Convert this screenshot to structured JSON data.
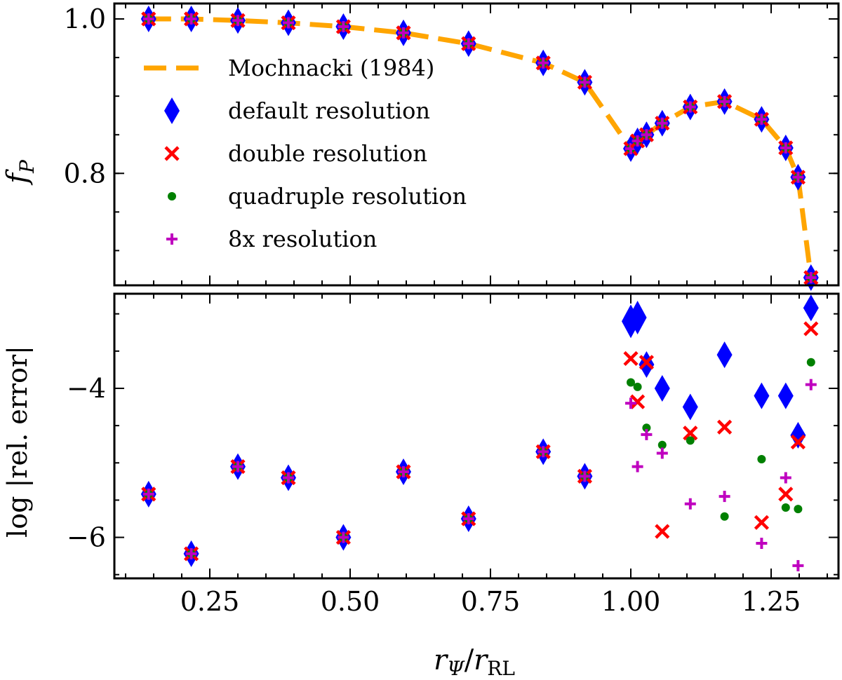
{
  "chart_data": [
    {
      "type": "scatter",
      "panel": "top",
      "ylabel": "f_P",
      "ylabel_main": "f",
      "ylabel_sub": "P",
      "xlim": [
        0.08,
        1.37
      ],
      "ylim": [
        0.655,
        1.02
      ],
      "yticks": [
        0.8,
        1.0
      ],
      "ytick_labels": [
        "0.8",
        "1.0"
      ],
      "legend_position": "upper-left-center",
      "legend": [
        {
          "key": "mochnacki",
          "label": "Mochnacki (1984)",
          "style": "dashed-line",
          "color": "#ffa500"
        },
        {
          "key": "default",
          "label": "default resolution",
          "style": "diamond",
          "color": "#0000ff"
        },
        {
          "key": "double",
          "label": "double resolution",
          "style": "x",
          "color": "#ff0000"
        },
        {
          "key": "quadruple",
          "label": "quadruple resolution",
          "style": "dot",
          "color": "#008000"
        },
        {
          "key": "eight",
          "label": "8x resolution",
          "style": "plus",
          "color": "#bf00bf"
        }
      ],
      "x": [
        0.141,
        0.217,
        0.3,
        0.39,
        0.488,
        0.595,
        0.711,
        0.844,
        0.918,
        1.0,
        1.012,
        1.028,
        1.056,
        1.106,
        1.167,
        1.233,
        1.276,
        1.298,
        1.321
      ],
      "series": [
        {
          "name": "Mochnacki (1984)",
          "values": [
            1.0,
            1.0,
            0.998,
            0.995,
            0.99,
            0.982,
            0.968,
            0.943,
            0.918,
            0.832,
            0.842,
            0.85,
            0.865,
            0.886,
            0.893,
            0.87,
            0.833,
            0.795,
            0.665
          ]
        },
        {
          "name": "default resolution",
          "values": [
            1.0,
            1.0,
            0.998,
            0.995,
            0.99,
            0.982,
            0.968,
            0.943,
            0.918,
            0.832,
            0.842,
            0.85,
            0.865,
            0.886,
            0.893,
            0.87,
            0.833,
            0.795,
            0.665
          ]
        },
        {
          "name": "double resolution",
          "values": [
            1.0,
            1.0,
            0.998,
            0.995,
            0.99,
            0.982,
            0.968,
            0.943,
            0.918,
            0.832,
            0.842,
            0.85,
            0.865,
            0.886,
            0.893,
            0.87,
            0.833,
            0.795,
            0.665
          ]
        },
        {
          "name": "quadruple resolution",
          "values": [
            1.0,
            1.0,
            0.998,
            0.995,
            0.99,
            0.982,
            0.968,
            0.943,
            0.918,
            0.832,
            0.842,
            0.85,
            0.865,
            0.886,
            0.893,
            0.87,
            0.833,
            0.795,
            0.665
          ]
        },
        {
          "name": "8x resolution",
          "values": [
            1.0,
            1.0,
            0.998,
            0.995,
            0.99,
            0.982,
            0.968,
            0.943,
            0.918,
            0.832,
            0.842,
            0.85,
            0.865,
            0.886,
            0.893,
            0.87,
            0.833,
            0.795,
            0.665
          ]
        }
      ]
    },
    {
      "type": "scatter",
      "panel": "bottom",
      "ylabel": "log |rel. error|",
      "xlabel": "r_Ψ / r_RL",
      "xlabel_r1": "r",
      "xlabel_sub1": "Ψ",
      "xlabel_slash": "/",
      "xlabel_r2": "r",
      "xlabel_sub2": "RL",
      "xlim": [
        0.08,
        1.37
      ],
      "ylim": [
        -6.55,
        -2.73
      ],
      "yticks": [
        -6,
        -4
      ],
      "ytick_labels": [
        "−6",
        "−4"
      ],
      "xticks": [
        0.25,
        0.5,
        0.75,
        1.0,
        1.25
      ],
      "xtick_labels": [
        "0.25",
        "0.50",
        "0.75",
        "1.00",
        "1.25"
      ],
      "series": [
        {
          "name": "default resolution",
          "points": [
            [
              0.141,
              -5.42
            ],
            [
              0.217,
              -6.22
            ],
            [
              0.3,
              -5.05
            ],
            [
              0.39,
              -5.2
            ],
            [
              0.488,
              -6.0
            ],
            [
              0.595,
              -5.12
            ],
            [
              0.711,
              -5.75
            ],
            [
              0.844,
              -4.85
            ],
            [
              0.918,
              -5.18
            ],
            [
              1.0,
              -3.1
            ],
            [
              1.012,
              -3.05
            ],
            [
              1.028,
              -3.68
            ],
            [
              1.056,
              -4.0
            ],
            [
              1.106,
              -4.25
            ],
            [
              1.167,
              -3.55
            ],
            [
              1.233,
              -4.1
            ],
            [
              1.276,
              -4.1
            ],
            [
              1.298,
              -4.63
            ],
            [
              1.321,
              -2.92
            ]
          ]
        },
        {
          "name": "double resolution",
          "points": [
            [
              0.141,
              -5.42
            ],
            [
              0.217,
              -6.22
            ],
            [
              0.3,
              -5.05
            ],
            [
              0.39,
              -5.2
            ],
            [
              0.488,
              -6.0
            ],
            [
              0.595,
              -5.12
            ],
            [
              0.711,
              -5.75
            ],
            [
              0.844,
              -4.85
            ],
            [
              0.918,
              -5.18
            ],
            [
              1.0,
              -3.6
            ],
            [
              1.012,
              -4.18
            ],
            [
              1.028,
              -3.65
            ],
            [
              1.056,
              -5.92
            ],
            [
              1.106,
              -4.6
            ],
            [
              1.167,
              -4.52
            ],
            [
              1.233,
              -5.8
            ],
            [
              1.276,
              -5.42
            ],
            [
              1.298,
              -4.72
            ],
            [
              1.321,
              -3.2
            ]
          ]
        },
        {
          "name": "quadruple resolution",
          "points": [
            [
              0.141,
              -5.42
            ],
            [
              0.217,
              -6.22
            ],
            [
              0.3,
              -5.05
            ],
            [
              0.39,
              -5.2
            ],
            [
              0.488,
              -6.0
            ],
            [
              0.595,
              -5.12
            ],
            [
              0.711,
              -5.75
            ],
            [
              0.844,
              -4.85
            ],
            [
              0.918,
              -5.18
            ],
            [
              1.0,
              -3.92
            ],
            [
              1.012,
              -3.98
            ],
            [
              1.028,
              -4.53
            ],
            [
              1.056,
              -4.76
            ],
            [
              1.106,
              -4.7
            ],
            [
              1.167,
              -5.72
            ],
            [
              1.233,
              -4.95
            ],
            [
              1.276,
              -5.6
            ],
            [
              1.298,
              -5.62
            ],
            [
              1.321,
              -3.65
            ]
          ]
        },
        {
          "name": "8x resolution",
          "points": [
            [
              0.141,
              -5.42
            ],
            [
              0.217,
              -6.22
            ],
            [
              0.3,
              -5.05
            ],
            [
              0.39,
              -5.2
            ],
            [
              0.488,
              -6.0
            ],
            [
              0.595,
              -5.12
            ],
            [
              0.711,
              -5.75
            ],
            [
              0.844,
              -4.85
            ],
            [
              0.918,
              -5.18
            ],
            [
              1.0,
              -4.2
            ],
            [
              1.012,
              -5.05
            ],
            [
              1.028,
              -4.62
            ],
            [
              1.056,
              -4.87
            ],
            [
              1.106,
              -5.55
            ],
            [
              1.167,
              -5.45
            ],
            [
              1.233,
              -6.08
            ],
            [
              1.276,
              -5.2
            ],
            [
              1.298,
              -6.38
            ],
            [
              1.321,
              -3.95
            ]
          ]
        }
      ]
    }
  ],
  "colors": {
    "mochnacki": "#ffa500",
    "default": "#0000ff",
    "double": "#ff0000",
    "quadruple": "#008000",
    "eight": "#bf00bf"
  }
}
